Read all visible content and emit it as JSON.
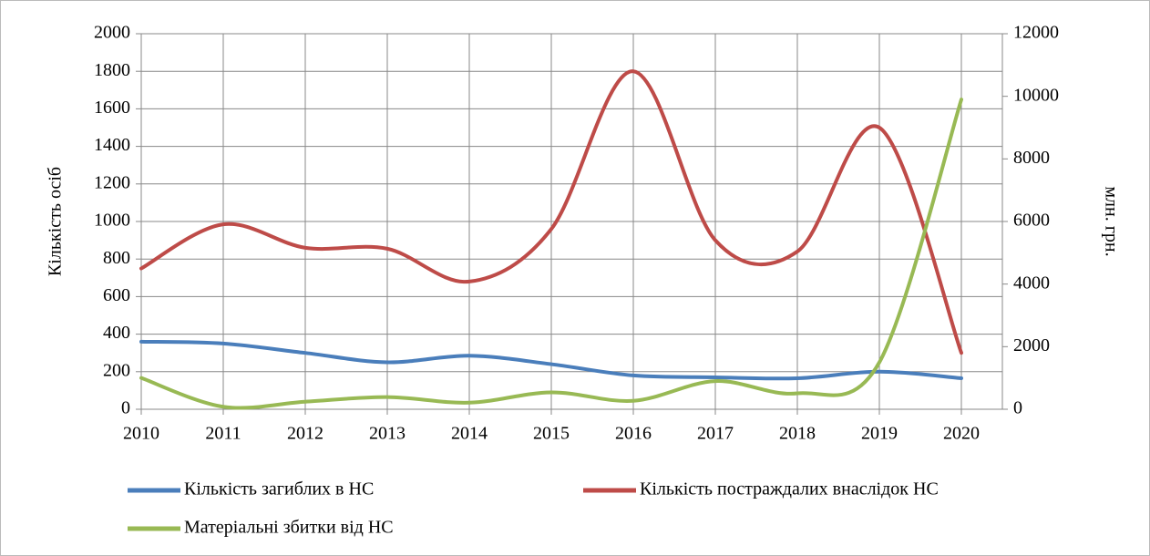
{
  "chart_data": {
    "type": "line",
    "x": [
      2010,
      2011,
      2012,
      2013,
      2014,
      2015,
      2016,
      2017,
      2018,
      2019,
      2020
    ],
    "xlim": [
      2010,
      2020.5
    ],
    "xticks": [
      2010,
      2011,
      2012,
      2013,
      2014,
      2015,
      2016,
      2017,
      2018,
      2019,
      2020
    ],
    "ylim": [
      0,
      2000
    ],
    "yticks": [
      0,
      200,
      400,
      600,
      800,
      1000,
      1200,
      1400,
      1600,
      1800,
      2000
    ],
    "y2lim": [
      0,
      12000
    ],
    "y2ticks": [
      0,
      2000,
      4000,
      6000,
      8000,
      10000,
      12000
    ],
    "ylabel": "Кількість осіб",
    "y2label": "млн. грн.",
    "grid": true,
    "smooth": true,
    "legend": "bottom",
    "series": [
      {
        "name": "Кількість загиблих в НС",
        "color": "#4a7ebb",
        "values": [
          360,
          350,
          300,
          250,
          285,
          240,
          180,
          170,
          165,
          200,
          165
        ]
      },
      {
        "name": "Кількість постраждалих внаслідок НС",
        "color": "#be4b48",
        "values": [
          750,
          985,
          860,
          855,
          680,
          960,
          1800,
          900,
          840,
          1500,
          300
        ]
      },
      {
        "name": "Матеріальні збитки від НС",
        "color": "#98b954",
        "axis": "y2",
        "values": [
          1000,
          80,
          240,
          390,
          210,
          540,
          270,
          900,
          510,
          1500,
          9900
        ]
      }
    ]
  }
}
